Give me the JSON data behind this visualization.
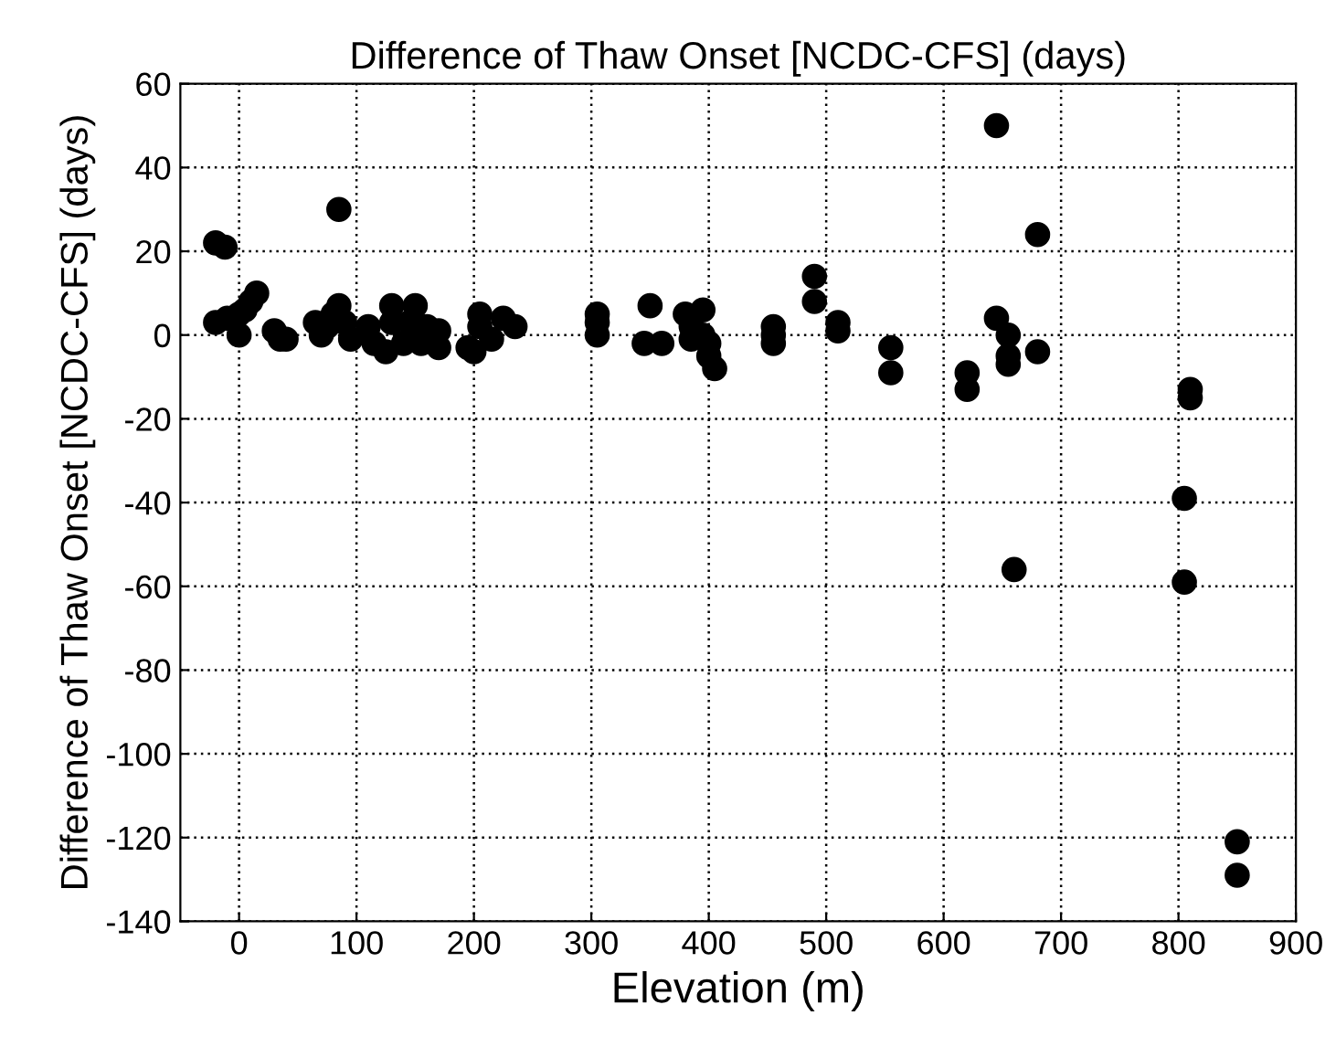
{
  "chart_data": {
    "type": "scatter",
    "title": "Difference of Thaw Onset [NCDC-CFS] (days)",
    "xlabel": "Elevation (m)",
    "ylabel": "Difference of Thaw Onset [NCDC-CFS] (days)",
    "xlim": [
      -50,
      900
    ],
    "xticks": [
      0,
      100,
      200,
      300,
      400,
      500,
      600,
      700,
      800,
      900
    ],
    "ylim": [
      -140,
      60
    ],
    "yticks": [
      -140,
      -120,
      -100,
      -80,
      -60,
      -40,
      -20,
      0,
      20,
      40,
      60
    ],
    "grid": true,
    "marker": "circle",
    "series": [
      {
        "color": "#000000",
        "x": [
          -20,
          -12,
          -20,
          -10,
          0,
          5,
          10,
          15,
          0,
          30,
          35,
          40,
          65,
          70,
          75,
          80,
          85,
          85,
          90,
          95,
          110,
          115,
          125,
          130,
          130,
          140,
          145,
          150,
          155,
          160,
          170,
          170,
          195,
          200,
          205,
          205,
          215,
          225,
          235,
          305,
          305,
          305,
          345,
          350,
          360,
          380,
          385,
          385,
          395,
          395,
          400,
          400,
          405,
          455,
          455,
          455,
          490,
          490,
          510,
          510,
          555,
          555,
          620,
          620,
          645,
          645,
          655,
          655,
          655,
          660,
          680,
          680,
          805,
          805,
          810,
          810,
          850,
          850
        ],
        "values": [
          22,
          21,
          3,
          4,
          5,
          6,
          8,
          10,
          0,
          1,
          -1,
          -1,
          3,
          0,
          2,
          5,
          7,
          30,
          3,
          -1,
          2,
          -2,
          -4,
          3,
          7,
          -2,
          3,
          7,
          -2,
          2,
          1,
          -3,
          -3,
          -4,
          5,
          2,
          -1,
          4,
          2,
          5,
          3,
          0,
          -2,
          7,
          -2,
          5,
          2,
          -1,
          6,
          0,
          -2,
          -5,
          -8,
          2,
          0,
          -2,
          14,
          8,
          3,
          1,
          -3,
          -9,
          -9,
          -13,
          50,
          4,
          0,
          -5,
          -7,
          -56,
          24,
          -4,
          -39,
          -59,
          -13,
          -15,
          -121,
          -129
        ]
      }
    ]
  }
}
